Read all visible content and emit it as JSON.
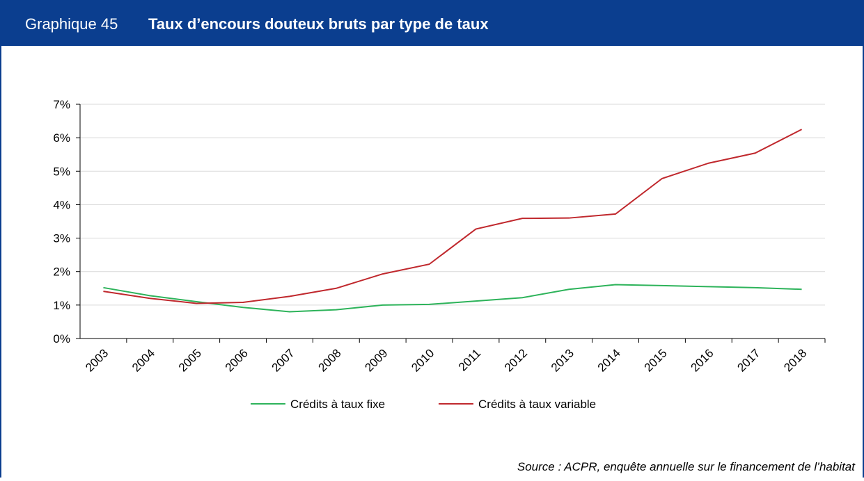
{
  "chart_data": {
    "type": "line",
    "label": "Graphique 45",
    "title": "Taux d’encours douteux bruts par type de taux",
    "source": "Source : ACPR, enquête annuelle sur le financement de l’habitat",
    "categories": [
      "2003",
      "2004",
      "2005",
      "2006",
      "2007",
      "2008",
      "2009",
      "2010",
      "2011",
      "2012",
      "2013",
      "2014",
      "2015",
      "2016",
      "2017",
      "2018"
    ],
    "series": [
      {
        "name": "Crédits à taux fixe",
        "color": "#2db35a",
        "values": [
          1.52,
          1.28,
          1.1,
          0.93,
          0.8,
          0.86,
          1.0,
          1.02,
          1.12,
          1.22,
          1.47,
          1.61,
          1.58,
          1.55,
          1.52,
          1.47
        ]
      },
      {
        "name": "Crédits à taux variable",
        "color": "#c0282d",
        "values": [
          1.41,
          1.2,
          1.05,
          1.08,
          1.26,
          1.5,
          1.93,
          2.22,
          3.27,
          3.59,
          3.6,
          3.72,
          4.78,
          5.24,
          5.54,
          6.25
        ]
      }
    ],
    "ylim": [
      0,
      7
    ],
    "yticks": [
      {
        "value": 0,
        "label": "0%"
      },
      {
        "value": 1,
        "label": "1%"
      },
      {
        "value": 2,
        "label": "2%"
      },
      {
        "value": 3,
        "label": "3%"
      },
      {
        "value": 4,
        "label": "4%"
      },
      {
        "value": 5,
        "label": "5%"
      },
      {
        "value": 6,
        "label": "6%"
      },
      {
        "value": 7,
        "label": "7%"
      }
    ],
    "grid": true,
    "legend": "bottom"
  }
}
